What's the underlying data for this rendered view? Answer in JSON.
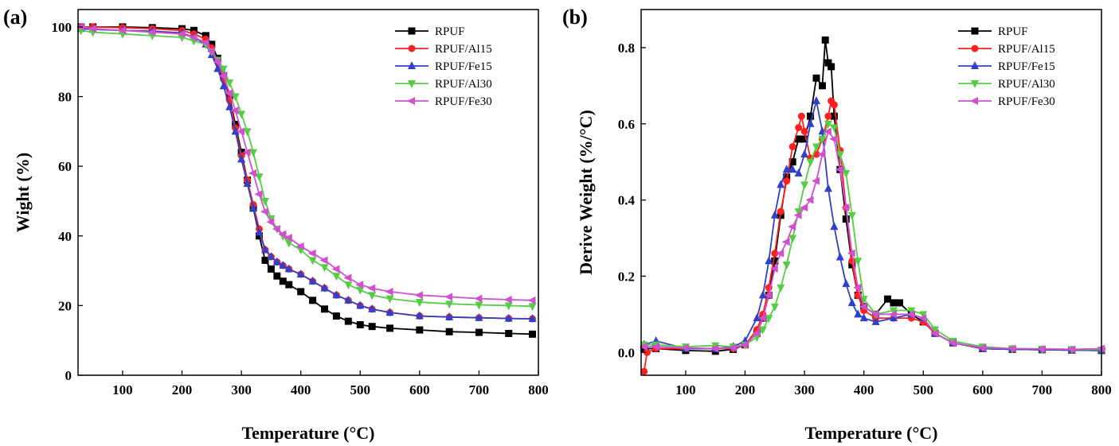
{
  "chart_data": [
    {
      "type": "line",
      "panel": "(a)",
      "xlabel": "Temperature (°C)",
      "ylabel": "Wight (%)",
      "xlim": [
        25,
        800
      ],
      "ylim": [
        0,
        105
      ],
      "xticks": [
        100,
        200,
        300,
        400,
        500,
        600,
        700,
        800
      ],
      "yticks": [
        0,
        20,
        40,
        60,
        80,
        100
      ],
      "legend_position": "top-right",
      "grid": false,
      "series": [
        {
          "name": "RPUF",
          "color": "#000000",
          "marker": "square",
          "x": [
            30,
            50,
            100,
            150,
            200,
            220,
            240,
            250,
            260,
            270,
            280,
            290,
            300,
            310,
            320,
            330,
            340,
            350,
            360,
            370,
            380,
            400,
            420,
            440,
            460,
            480,
            500,
            520,
            550,
            600,
            650,
            700,
            750,
            790
          ],
          "y": [
            100,
            100,
            100,
            99.8,
            99.5,
            99,
            97.5,
            95,
            91,
            86,
            80,
            72,
            64,
            56,
            48,
            40,
            33,
            30.5,
            28.5,
            27,
            26,
            24,
            21.5,
            19,
            17,
            15.5,
            14.5,
            14,
            13.5,
            13,
            12.5,
            12.3,
            12,
            11.8
          ]
        },
        {
          "name": "RPUF/Al15",
          "color": "#ff2020",
          "marker": "circle",
          "x": [
            30,
            50,
            100,
            150,
            200,
            220,
            240,
            250,
            260,
            270,
            280,
            290,
            300,
            310,
            320,
            330,
            340,
            350,
            360,
            370,
            380,
            400,
            420,
            440,
            460,
            480,
            500,
            520,
            550,
            600,
            650,
            700,
            750,
            790
          ],
          "y": [
            100,
            100,
            99.8,
            99.5,
            99,
            98,
            96.5,
            94,
            90,
            85,
            79,
            71,
            63,
            56,
            49,
            42,
            36,
            34,
            32.5,
            31.5,
            30.5,
            29,
            27,
            25,
            23,
            21.5,
            20,
            19,
            18,
            17,
            16.7,
            16.5,
            16.3,
            16.2
          ]
        },
        {
          "name": "RPUF/Fe15",
          "color": "#3040c8",
          "marker": "triangle-up",
          "x": [
            30,
            50,
            100,
            150,
            200,
            220,
            240,
            250,
            260,
            270,
            280,
            290,
            300,
            310,
            320,
            330,
            340,
            350,
            360,
            370,
            380,
            400,
            420,
            440,
            460,
            480,
            500,
            520,
            550,
            600,
            650,
            700,
            750,
            790
          ],
          "y": [
            99.5,
            99.3,
            99,
            98.8,
            98.3,
            97,
            95,
            92,
            88,
            83,
            77,
            70,
            62,
            55,
            48,
            41,
            36,
            34,
            32.5,
            31.5,
            30.5,
            29,
            27,
            25,
            23,
            21.5,
            20,
            19,
            18,
            17,
            16.7,
            16.5,
            16.3,
            16.2
          ]
        },
        {
          "name": "RPUF/Al30",
          "color": "#55cc44",
          "marker": "triangle-down",
          "x": [
            30,
            50,
            100,
            150,
            200,
            220,
            240,
            250,
            260,
            270,
            280,
            290,
            300,
            310,
            320,
            330,
            340,
            350,
            360,
            370,
            380,
            400,
            420,
            440,
            460,
            480,
            500,
            520,
            550,
            600,
            650,
            700,
            750,
            790
          ],
          "y": [
            99,
            98.5,
            98,
            97.5,
            97,
            96,
            95,
            93,
            90.5,
            88,
            84,
            80,
            75,
            70,
            64,
            57,
            50,
            45,
            42,
            40,
            38,
            36,
            33,
            31,
            28.5,
            26,
            24.5,
            23,
            22,
            21,
            20.5,
            20.2,
            20,
            19.8
          ]
        },
        {
          "name": "RPUF/Fe30",
          "color": "#d050d0",
          "marker": "triangle-left",
          "x": [
            30,
            50,
            100,
            150,
            200,
            220,
            240,
            250,
            260,
            270,
            280,
            290,
            300,
            310,
            320,
            330,
            340,
            350,
            360,
            370,
            380,
            400,
            420,
            440,
            460,
            480,
            500,
            520,
            550,
            600,
            650,
            700,
            750,
            790
          ],
          "y": [
            100,
            99.5,
            99,
            98.5,
            98,
            97,
            95.5,
            93,
            90,
            86,
            81,
            76,
            70,
            64,
            58,
            52,
            47,
            44,
            42,
            40.5,
            39.5,
            37,
            35,
            33,
            30.5,
            28,
            26,
            25,
            24,
            23,
            22.5,
            22,
            21.7,
            21.5
          ]
        }
      ]
    },
    {
      "type": "line",
      "panel": "(b)",
      "xlabel": "Temperature (°C)",
      "ylabel": "Derive Weight (%/°C)",
      "xlim": [
        25,
        800
      ],
      "ylim": [
        -0.06,
        0.9
      ],
      "xticks": [
        100,
        200,
        300,
        400,
        500,
        600,
        700,
        800
      ],
      "yticks": [
        0.0,
        0.2,
        0.4,
        0.6,
        0.8
      ],
      "legend_position": "top-right",
      "grid": false,
      "series": [
        {
          "name": "RPUF",
          "color": "#000000",
          "marker": "square",
          "x": [
            30,
            50,
            100,
            150,
            180,
            200,
            220,
            230,
            240,
            250,
            260,
            270,
            280,
            290,
            300,
            310,
            320,
            330,
            335,
            340,
            345,
            350,
            360,
            370,
            380,
            390,
            400,
            420,
            440,
            450,
            460,
            480,
            500,
            520,
            550,
            600,
            650,
            700,
            750,
            800
          ],
          "y": [
            0.01,
            0.01,
            0.005,
            0.003,
            0.008,
            0.02,
            0.05,
            0.09,
            0.15,
            0.24,
            0.36,
            0.46,
            0.5,
            0.56,
            0.56,
            0.62,
            0.72,
            0.7,
            0.82,
            0.76,
            0.75,
            0.62,
            0.48,
            0.35,
            0.23,
            0.15,
            0.12,
            0.1,
            0.14,
            0.13,
            0.13,
            0.1,
            0.08,
            0.05,
            0.025,
            0.01,
            0.008,
            0.007,
            0.006,
            0.005
          ]
        },
        {
          "name": "RPUF/Al15",
          "color": "#ff2020",
          "marker": "circle",
          "x": [
            30,
            35,
            50,
            100,
            150,
            180,
            200,
            220,
            230,
            240,
            250,
            260,
            270,
            280,
            290,
            295,
            300,
            310,
            320,
            330,
            340,
            345,
            350,
            360,
            370,
            380,
            390,
            400,
            420,
            450,
            480,
            500,
            520,
            550,
            600,
            650,
            700,
            750,
            800
          ],
          "y": [
            -0.05,
            0.0,
            0.01,
            0.01,
            0.01,
            0.01,
            0.02,
            0.06,
            0.1,
            0.17,
            0.26,
            0.37,
            0.45,
            0.54,
            0.59,
            0.62,
            0.58,
            0.51,
            0.52,
            0.56,
            0.62,
            0.66,
            0.65,
            0.53,
            0.38,
            0.24,
            0.15,
            0.11,
            0.09,
            0.09,
            0.09,
            0.08,
            0.05,
            0.025,
            0.01,
            0.008,
            0.007,
            0.006,
            0.005
          ]
        },
        {
          "name": "RPUF/Fe15",
          "color": "#3040c8",
          "marker": "triangle-up",
          "x": [
            30,
            50,
            100,
            150,
            180,
            200,
            220,
            230,
            240,
            250,
            260,
            270,
            280,
            290,
            300,
            310,
            320,
            330,
            340,
            350,
            360,
            370,
            380,
            390,
            400,
            420,
            450,
            480,
            500,
            520,
            550,
            600,
            650,
            700,
            750,
            800
          ],
          "y": [
            0.02,
            0.03,
            0.01,
            0.01,
            0.015,
            0.03,
            0.09,
            0.15,
            0.24,
            0.36,
            0.44,
            0.48,
            0.48,
            0.47,
            0.52,
            0.6,
            0.66,
            0.58,
            0.43,
            0.33,
            0.25,
            0.18,
            0.13,
            0.1,
            0.09,
            0.08,
            0.09,
            0.1,
            0.09,
            0.05,
            0.025,
            0.01,
            0.008,
            0.007,
            0.006,
            0.005
          ]
        },
        {
          "name": "RPUF/Al30",
          "color": "#55cc44",
          "marker": "triangle-down",
          "x": [
            30,
            50,
            100,
            150,
            180,
            200,
            220,
            230,
            240,
            250,
            260,
            270,
            280,
            290,
            300,
            310,
            320,
            330,
            340,
            350,
            360,
            370,
            380,
            390,
            400,
            420,
            450,
            480,
            500,
            520,
            550,
            600,
            650,
            700,
            750,
            800
          ],
          "y": [
            0.02,
            0.02,
            0.015,
            0.018,
            0.015,
            0.02,
            0.04,
            0.06,
            0.09,
            0.12,
            0.17,
            0.23,
            0.3,
            0.37,
            0.44,
            0.5,
            0.54,
            0.56,
            0.6,
            0.59,
            0.52,
            0.47,
            0.36,
            0.24,
            0.14,
            0.1,
            0.11,
            0.11,
            0.1,
            0.06,
            0.03,
            0.015,
            0.01,
            0.009,
            0.008,
            0.007
          ]
        },
        {
          "name": "RPUF/Fe30",
          "color": "#d050d0",
          "marker": "triangle-left",
          "x": [
            30,
            50,
            100,
            150,
            180,
            200,
            220,
            230,
            240,
            250,
            260,
            270,
            280,
            290,
            300,
            310,
            320,
            330,
            340,
            350,
            360,
            370,
            380,
            390,
            400,
            420,
            450,
            480,
            500,
            520,
            550,
            600,
            650,
            700,
            750,
            800
          ],
          "y": [
            0.015,
            0.015,
            0.012,
            0.01,
            0.012,
            0.02,
            0.05,
            0.09,
            0.15,
            0.22,
            0.26,
            0.29,
            0.33,
            0.36,
            0.38,
            0.4,
            0.45,
            0.52,
            0.58,
            0.56,
            0.48,
            0.38,
            0.26,
            0.17,
            0.12,
            0.1,
            0.1,
            0.1,
            0.09,
            0.05,
            0.025,
            0.012,
            0.01,
            0.009,
            0.008,
            0.01
          ]
        }
      ]
    }
  ]
}
